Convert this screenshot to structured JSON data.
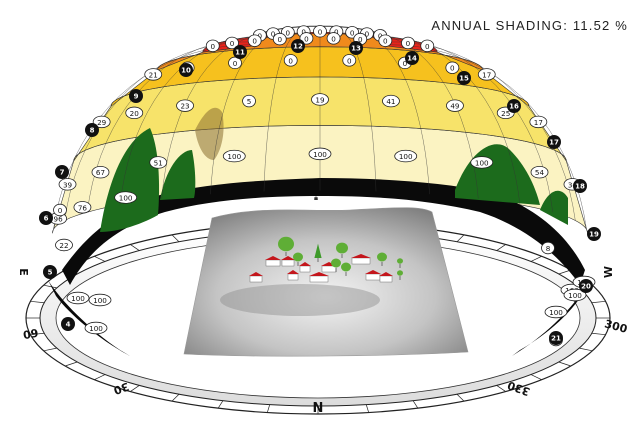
{
  "title": {
    "label": "ANNUAL SHADING:",
    "value": "11.52 %"
  },
  "hour_markers": [
    "4",
    "5",
    "6",
    "7",
    "8",
    "9",
    "10",
    "11",
    "12",
    "13",
    "14",
    "15",
    "16",
    "17",
    "18",
    "19",
    "20",
    "21"
  ],
  "shading_cells": {
    "top_row": [
      "0",
      "0",
      "0",
      "0",
      "0",
      "0",
      "0",
      "0",
      "0"
    ],
    "row2": [
      "0",
      "0",
      "0",
      "0",
      "0",
      "0",
      "0",
      "0",
      "0",
      "0"
    ],
    "row3": [
      "21",
      "0",
      "0",
      "0",
      "0",
      "0",
      "0",
      "17"
    ],
    "row4": [
      "29",
      "20",
      "23",
      "5",
      "19",
      "41",
      "49",
      "25",
      "17"
    ],
    "row5": [
      "39",
      "67",
      "51",
      "100",
      "100",
      "100",
      "100",
      "54",
      "34"
    ],
    "row6": [
      "96",
      "76",
      "100"
    ],
    "edge": [
      "0",
      "22",
      "8",
      "100",
      "100",
      "100",
      "100",
      "100",
      "100",
      "100",
      "8"
    ]
  },
  "compass": {
    "north": "N",
    "east": "E",
    "west": "W",
    "deg30": "30",
    "deg60": "60",
    "deg300": "300",
    "deg330": "330"
  },
  "colors": {
    "band_top": "#e8231a",
    "band_2": "#f08a1c",
    "band_3": "#f6c11e",
    "band_4": "#f7e36a",
    "band_5": "#fbf3c2",
    "terrain": "#b8b8b8",
    "tree": "#1c6b1c",
    "house_roof": "#c4161c"
  }
}
